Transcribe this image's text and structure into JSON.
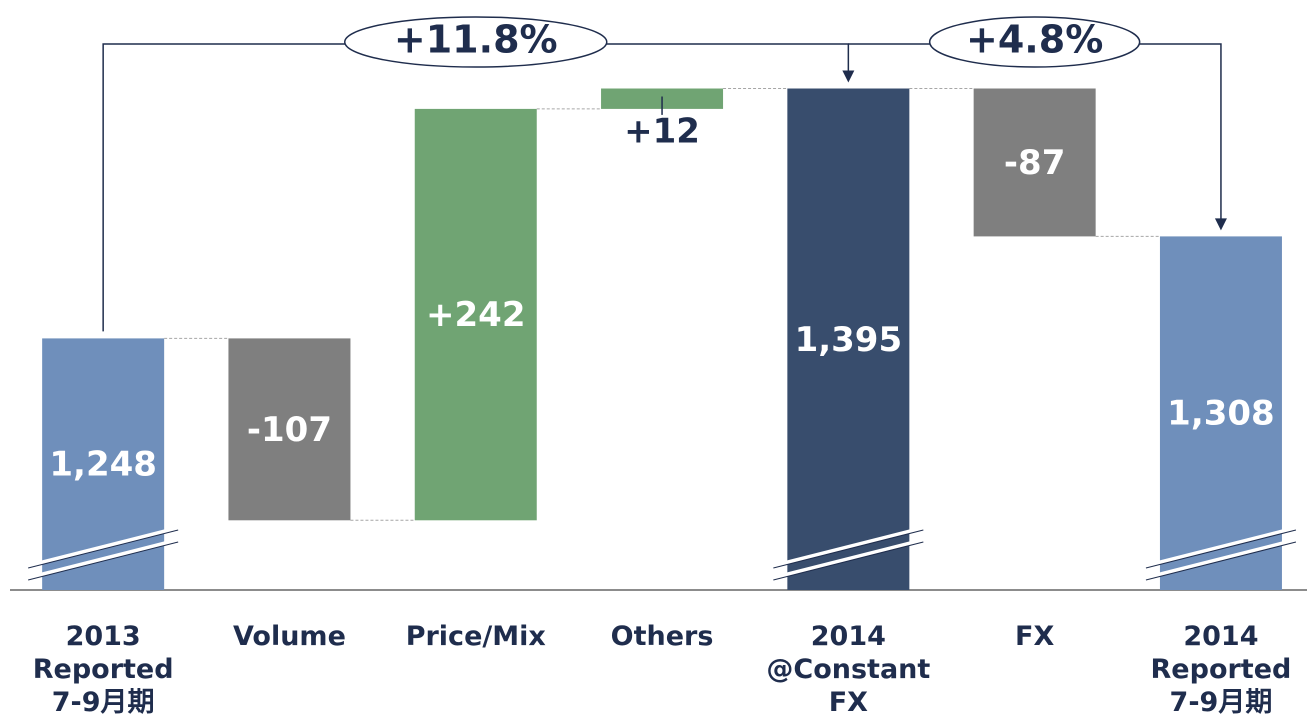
{
  "chart_data": {
    "type": "waterfall",
    "categories": [
      "2013\nReported\n7-9月期",
      "Volume",
      "Price/Mix",
      "Others",
      "2014\n@Constant\nFX",
      "FX",
      "2014\nReported\n7-9月期"
    ],
    "values": [
      1248,
      -107,
      242,
      12,
      1395,
      -87,
      1308
    ],
    "value_labels": [
      "1,248",
      "-107",
      "+242",
      "+12",
      "1,395",
      "-87",
      "1,308"
    ],
    "measure": [
      "absolute",
      "relative",
      "relative",
      "relative",
      "total",
      "relative",
      "absolute"
    ],
    "colors": [
      "#6f8fbb",
      "#7f7f7f",
      "#70a473",
      "#70a473",
      "#384d6d",
      "#7f7f7f",
      "#6f8fbb"
    ],
    "ylim": [
      1100,
      1400
    ],
    "annotations": [
      {
        "text": "+11.8%",
        "from": 0,
        "to": 4
      },
      {
        "text": "+4.8%",
        "from": 4,
        "to": 6
      }
    ]
  }
}
